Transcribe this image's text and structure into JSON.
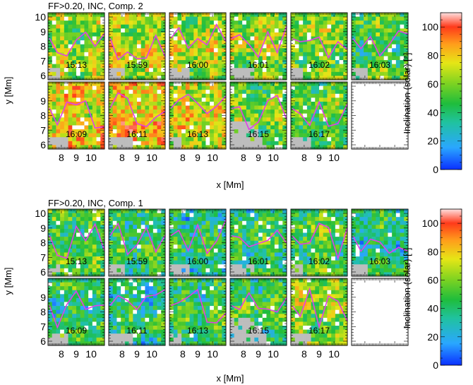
{
  "panels": [
    {
      "title": "FF>0.20, INC, Comp. 2",
      "xlabel": "x [Mm]",
      "ylabel": "y [Mm]",
      "x_ticks": [
        8,
        9,
        10
      ],
      "y_ticks": [
        6,
        7,
        8,
        9,
        10
      ],
      "xlim": [
        7.1,
        10.9
      ],
      "ylim": [
        5.9,
        10.3
      ],
      "times": [
        "15:13",
        "15:59",
        "16:00",
        "16:01",
        "16:02",
        "16:03",
        "16:09",
        "16:11",
        "16:13",
        "16:15",
        "16:17",
        ""
      ],
      "colorbar": {
        "label": "Inclination (solar) [°]",
        "ticks": [
          0,
          20,
          40,
          60,
          80,
          100
        ],
        "range": [
          0,
          110
        ]
      },
      "mean_level": [
        55,
        62,
        60,
        58,
        55,
        45,
        70,
        75,
        65,
        50,
        45,
        null
      ]
    },
    {
      "title": "FF>0.20, INC, Comp. 1",
      "xlabel": "x [Mm]",
      "ylabel": "y [Mm]",
      "x_ticks": [
        8,
        9,
        10
      ],
      "y_ticks": [
        6,
        7,
        8,
        9,
        10
      ],
      "xlim": [
        7.1,
        10.9
      ],
      "ylim": [
        5.9,
        10.3
      ],
      "times": [
        "15:13",
        "15:59",
        "16:00",
        "16:01",
        "16:02",
        "16:03",
        "16:09",
        "16:11",
        "16:13",
        "16:15",
        "16:17",
        ""
      ],
      "colorbar": {
        "label": "Inclination (solar) [°]",
        "ticks": [
          0,
          20,
          40,
          60,
          80,
          100
        ],
        "range": [
          0,
          110
        ]
      },
      "mean_level": [
        42,
        38,
        35,
        40,
        45,
        35,
        38,
        35,
        40,
        40,
        55,
        null
      ]
    }
  ],
  "chart_data": {
    "type": "heatmap",
    "colormap": [
      "#0b30ff",
      "#2aa7ff",
      "#20c2a0",
      "#1fbd3c",
      "#7ed321",
      "#e6e616",
      "#ff9d1b",
      "#ff3a1a",
      "#ffe0e0"
    ],
    "contour_color": "#e040e8",
    "masked_color": "#bdbdbd"
  }
}
